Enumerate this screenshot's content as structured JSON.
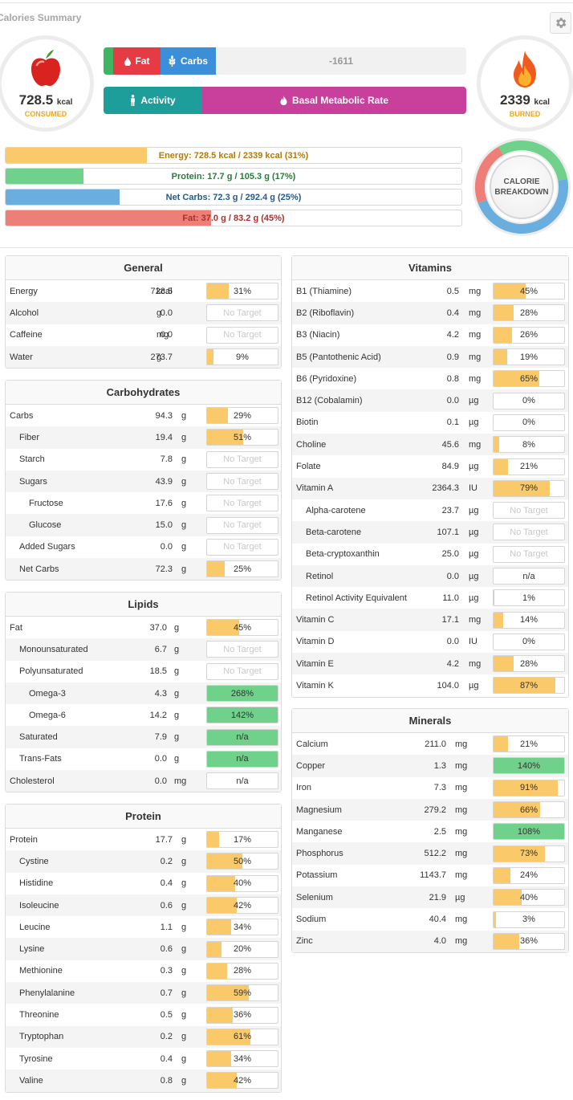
{
  "header": {
    "title": "Calories Summary",
    "settings_icon": "gear-icon"
  },
  "consumed": {
    "value": "728.5",
    "unit": "kcal",
    "label": "CONSUMED",
    "icon": "apple-icon"
  },
  "burned": {
    "value": "2339",
    "unit": "kcal",
    "label": "BURNED",
    "icon": "flame-icon"
  },
  "top_bar": {
    "fat_label": "Fat",
    "carbs_label": "Carbs",
    "net_value": "-1611"
  },
  "bottom_bar": {
    "activity_label": "Activity",
    "bmr_label": "Basal Metabolic Rate"
  },
  "targets": [
    {
      "label": "Energy: 728.5 kcal / 2339 kcal (31%)",
      "percent": 31,
      "color": "#f9c96a",
      "text_color": "#b47a06"
    },
    {
      "label": "Protein: 17.7 g / 105.3 g (17%)",
      "percent": 17,
      "color": "#6fd18a",
      "text_color": "#2b7a3c"
    },
    {
      "label": "Net Carbs: 72.3 g / 292.4 g (25%)",
      "percent": 25,
      "color": "#6aaee0",
      "text_color": "#245a8a"
    },
    {
      "label": "Fat: 37.0 g / 83.2 g (45%)",
      "percent": 45,
      "color": "#ee7f78",
      "text_color": "#a5332d"
    }
  ],
  "breakdown": {
    "line1": "CALORIE",
    "line2": "BREAKDOWN"
  },
  "colors": {
    "yellow": "#f9c96a",
    "green": "#6fd18a",
    "blue": "#6aaee0",
    "red": "#ee7f78",
    "purple": "#c83f9c",
    "teal": "#1d9e9a"
  },
  "panels": {
    "general": {
      "title": "General",
      "rows": [
        {
          "name": "Energy",
          "amount": "728.5",
          "unit": "kcal",
          "pct": 31,
          "text": "31%",
          "color": "yellow",
          "indent": 0
        },
        {
          "name": "Alcohol",
          "amount": "0.0",
          "unit": "g",
          "pct": 0,
          "text": "No Target",
          "color": "none",
          "indent": 0
        },
        {
          "name": "Caffeine",
          "amount": "0.0",
          "unit": "mg",
          "pct": 0,
          "text": "No Target",
          "color": "none",
          "indent": 0
        },
        {
          "name": "Water",
          "amount": "273.7",
          "unit": "g",
          "pct": 9,
          "text": "9%",
          "color": "yellow",
          "indent": 0
        }
      ]
    },
    "carbs": {
      "title": "Carbohydrates",
      "rows": [
        {
          "name": "Carbs",
          "amount": "94.3",
          "unit": "g",
          "pct": 29,
          "text": "29%",
          "color": "yellow",
          "indent": 0
        },
        {
          "name": "Fiber",
          "amount": "19.4",
          "unit": "g",
          "pct": 51,
          "text": "51%",
          "color": "yellow",
          "indent": 1
        },
        {
          "name": "Starch",
          "amount": "7.8",
          "unit": "g",
          "pct": 0,
          "text": "No Target",
          "color": "none",
          "indent": 1
        },
        {
          "name": "Sugars",
          "amount": "43.9",
          "unit": "g",
          "pct": 0,
          "text": "No Target",
          "color": "none",
          "indent": 1
        },
        {
          "name": "Fructose",
          "amount": "17.6",
          "unit": "g",
          "pct": 0,
          "text": "No Target",
          "color": "none",
          "indent": 2
        },
        {
          "name": "Glucose",
          "amount": "15.0",
          "unit": "g",
          "pct": 0,
          "text": "No Target",
          "color": "none",
          "indent": 2
        },
        {
          "name": "Added Sugars",
          "amount": "0.0",
          "unit": "g",
          "pct": 0,
          "text": "No Target",
          "color": "none",
          "indent": 1
        },
        {
          "name": "Net Carbs",
          "amount": "72.3",
          "unit": "g",
          "pct": 25,
          "text": "25%",
          "color": "yellow",
          "indent": 1
        }
      ]
    },
    "lipids": {
      "title": "Lipids",
      "rows": [
        {
          "name": "Fat",
          "amount": "37.0",
          "unit": "g",
          "pct": 45,
          "text": "45%",
          "color": "yellow",
          "indent": 0
        },
        {
          "name": "Monounsaturated",
          "amount": "6.7",
          "unit": "g",
          "pct": 0,
          "text": "No Target",
          "color": "none",
          "indent": 1
        },
        {
          "name": "Polyunsaturated",
          "amount": "18.5",
          "unit": "g",
          "pct": 0,
          "text": "No Target",
          "color": "none",
          "indent": 1
        },
        {
          "name": "Omega-3",
          "amount": "4.3",
          "unit": "g",
          "pct": 100,
          "text": "268%",
          "color": "green",
          "indent": 2
        },
        {
          "name": "Omega-6",
          "amount": "14.2",
          "unit": "g",
          "pct": 100,
          "text": "142%",
          "color": "green",
          "indent": 2
        },
        {
          "name": "Saturated",
          "amount": "7.9",
          "unit": "g",
          "pct": 100,
          "text": "n/a",
          "color": "green",
          "indent": 1
        },
        {
          "name": "Trans-Fats",
          "amount": "0.0",
          "unit": "g",
          "pct": 100,
          "text": "n/a",
          "color": "green",
          "indent": 1
        },
        {
          "name": "Cholesterol",
          "amount": "0.0",
          "unit": "mg",
          "pct": 0,
          "text": "n/a",
          "color": "none",
          "indent": 0
        }
      ]
    },
    "protein": {
      "title": "Protein",
      "rows": [
        {
          "name": "Protein",
          "amount": "17.7",
          "unit": "g",
          "pct": 17,
          "text": "17%",
          "color": "yellow",
          "indent": 0
        },
        {
          "name": "Cystine",
          "amount": "0.2",
          "unit": "g",
          "pct": 50,
          "text": "50%",
          "color": "yellow",
          "indent": 1
        },
        {
          "name": "Histidine",
          "amount": "0.4",
          "unit": "g",
          "pct": 40,
          "text": "40%",
          "color": "yellow",
          "indent": 1
        },
        {
          "name": "Isoleucine",
          "amount": "0.6",
          "unit": "g",
          "pct": 42,
          "text": "42%",
          "color": "yellow",
          "indent": 1
        },
        {
          "name": "Leucine",
          "amount": "1.1",
          "unit": "g",
          "pct": 34,
          "text": "34%",
          "color": "yellow",
          "indent": 1
        },
        {
          "name": "Lysine",
          "amount": "0.6",
          "unit": "g",
          "pct": 20,
          "text": "20%",
          "color": "yellow",
          "indent": 1
        },
        {
          "name": "Methionine",
          "amount": "0.3",
          "unit": "g",
          "pct": 28,
          "text": "28%",
          "color": "yellow",
          "indent": 1
        },
        {
          "name": "Phenylalanine",
          "amount": "0.7",
          "unit": "g",
          "pct": 59,
          "text": "59%",
          "color": "yellow",
          "indent": 1
        },
        {
          "name": "Threonine",
          "amount": "0.5",
          "unit": "g",
          "pct": 36,
          "text": "36%",
          "color": "yellow",
          "indent": 1
        },
        {
          "name": "Tryptophan",
          "amount": "0.2",
          "unit": "g",
          "pct": 61,
          "text": "61%",
          "color": "yellow",
          "indent": 1
        },
        {
          "name": "Tyrosine",
          "amount": "0.4",
          "unit": "g",
          "pct": 34,
          "text": "34%",
          "color": "yellow",
          "indent": 1
        },
        {
          "name": "Valine",
          "amount": "0.8",
          "unit": "g",
          "pct": 42,
          "text": "42%",
          "color": "yellow",
          "indent": 1
        }
      ]
    },
    "vitamins": {
      "title": "Vitamins",
      "rows": [
        {
          "name": "B1 (Thiamine)",
          "amount": "0.5",
          "unit": "mg",
          "pct": 45,
          "text": "45%",
          "color": "yellow",
          "indent": 0
        },
        {
          "name": "B2 (Riboflavin)",
          "amount": "0.4",
          "unit": "mg",
          "pct": 28,
          "text": "28%",
          "color": "yellow",
          "indent": 0
        },
        {
          "name": "B3 (Niacin)",
          "amount": "4.2",
          "unit": "mg",
          "pct": 26,
          "text": "26%",
          "color": "yellow",
          "indent": 0
        },
        {
          "name": "B5 (Pantothenic Acid)",
          "amount": "0.9",
          "unit": "mg",
          "pct": 19,
          "text": "19%",
          "color": "yellow",
          "indent": 0
        },
        {
          "name": "B6 (Pyridoxine)",
          "amount": "0.8",
          "unit": "mg",
          "pct": 65,
          "text": "65%",
          "color": "yellow",
          "indent": 0
        },
        {
          "name": "B12 (Cobalamin)",
          "amount": "0.0",
          "unit": "µg",
          "pct": 0,
          "text": "0%",
          "color": "yellow",
          "indent": 0
        },
        {
          "name": "Biotin",
          "amount": "0.1",
          "unit": "µg",
          "pct": 0,
          "text": "0%",
          "color": "yellow",
          "indent": 0
        },
        {
          "name": "Choline",
          "amount": "45.6",
          "unit": "mg",
          "pct": 8,
          "text": "8%",
          "color": "yellow",
          "indent": 0
        },
        {
          "name": "Folate",
          "amount": "84.9",
          "unit": "µg",
          "pct": 21,
          "text": "21%",
          "color": "yellow",
          "indent": 0
        },
        {
          "name": "Vitamin A",
          "amount": "2364.3",
          "unit": "IU",
          "pct": 79,
          "text": "79%",
          "color": "yellow",
          "indent": 0
        },
        {
          "name": "Alpha-carotene",
          "amount": "23.7",
          "unit": "µg",
          "pct": 0,
          "text": "No Target",
          "color": "none",
          "indent": 1
        },
        {
          "name": "Beta-carotene",
          "amount": "107.1",
          "unit": "µg",
          "pct": 0,
          "text": "No Target",
          "color": "none",
          "indent": 1
        },
        {
          "name": "Beta-cryptoxanthin",
          "amount": "25.0",
          "unit": "µg",
          "pct": 0,
          "text": "No Target",
          "color": "none",
          "indent": 1
        },
        {
          "name": "Retinol",
          "amount": "0.0",
          "unit": "µg",
          "pct": 0,
          "text": "n/a",
          "color": "none",
          "indent": 1
        },
        {
          "name": "Retinol Activity Equivalent",
          "amount": "11.0",
          "unit": "µg",
          "pct": 1,
          "text": "1%",
          "color": "yellow",
          "indent": 1
        },
        {
          "name": "Vitamin C",
          "amount": "17.1",
          "unit": "mg",
          "pct": 14,
          "text": "14%",
          "color": "yellow",
          "indent": 0
        },
        {
          "name": "Vitamin D",
          "amount": "0.0",
          "unit": "IU",
          "pct": 0,
          "text": "0%",
          "color": "yellow",
          "indent": 0
        },
        {
          "name": "Vitamin E",
          "amount": "4.2",
          "unit": "mg",
          "pct": 28,
          "text": "28%",
          "color": "yellow",
          "indent": 0
        },
        {
          "name": "Vitamin K",
          "amount": "104.0",
          "unit": "µg",
          "pct": 87,
          "text": "87%",
          "color": "yellow",
          "indent": 0
        }
      ]
    },
    "minerals": {
      "title": "Minerals",
      "rows": [
        {
          "name": "Calcium",
          "amount": "211.0",
          "unit": "mg",
          "pct": 21,
          "text": "21%",
          "color": "yellow",
          "indent": 0
        },
        {
          "name": "Copper",
          "amount": "1.3",
          "unit": "mg",
          "pct": 100,
          "text": "140%",
          "color": "green",
          "indent": 0
        },
        {
          "name": "Iron",
          "amount": "7.3",
          "unit": "mg",
          "pct": 91,
          "text": "91%",
          "color": "yellow",
          "indent": 0
        },
        {
          "name": "Magnesium",
          "amount": "279.2",
          "unit": "mg",
          "pct": 66,
          "text": "66%",
          "color": "yellow",
          "indent": 0
        },
        {
          "name": "Manganese",
          "amount": "2.5",
          "unit": "mg",
          "pct": 100,
          "text": "108%",
          "color": "green",
          "indent": 0
        },
        {
          "name": "Phosphorus",
          "amount": "512.2",
          "unit": "mg",
          "pct": 73,
          "text": "73%",
          "color": "yellow",
          "indent": 0
        },
        {
          "name": "Potassium",
          "amount": "1143.7",
          "unit": "mg",
          "pct": 24,
          "text": "24%",
          "color": "yellow",
          "indent": 0
        },
        {
          "name": "Selenium",
          "amount": "21.9",
          "unit": "µg",
          "pct": 40,
          "text": "40%",
          "color": "yellow",
          "indent": 0
        },
        {
          "name": "Sodium",
          "amount": "40.4",
          "unit": "mg",
          "pct": 3,
          "text": "3%",
          "color": "yellow",
          "indent": 0
        },
        {
          "name": "Zinc",
          "amount": "4.0",
          "unit": "mg",
          "pct": 36,
          "text": "36%",
          "color": "yellow",
          "indent": 0
        }
      ]
    }
  }
}
